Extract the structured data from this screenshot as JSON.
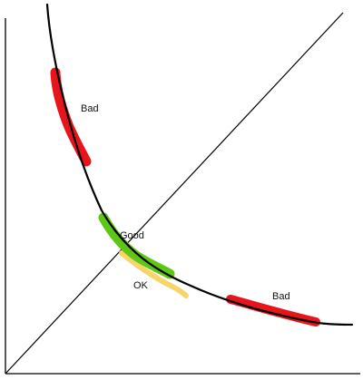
{
  "labels": {
    "bad_upper": "Bad",
    "good": "Good",
    "ok": "OK",
    "bad_lower": "Bad"
  },
  "colors": {
    "axis": "#000000",
    "curve": "#000000",
    "bad": "#e8141b",
    "good": "#5ec716",
    "ok": "#f8d56b",
    "background": "#ffffff"
  }
}
